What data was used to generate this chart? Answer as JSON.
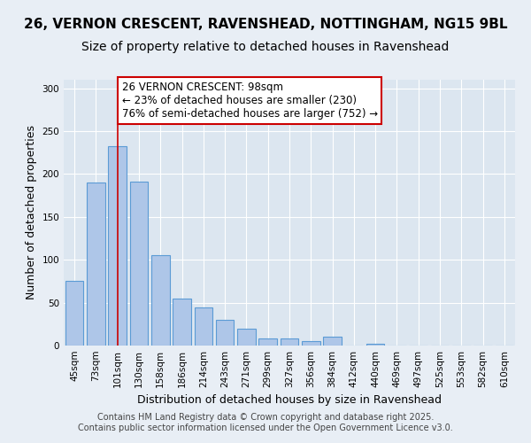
{
  "title": "26, VERNON CRESCENT, RAVENSHEAD, NOTTINGHAM, NG15 9BL",
  "subtitle": "Size of property relative to detached houses in Ravenshead",
  "xlabel": "Distribution of detached houses by size in Ravenshead",
  "ylabel": "Number of detached properties",
  "categories": [
    "45sqm",
    "73sqm",
    "101sqm",
    "130sqm",
    "158sqm",
    "186sqm",
    "214sqm",
    "243sqm",
    "271sqm",
    "299sqm",
    "327sqm",
    "356sqm",
    "384sqm",
    "412sqm",
    "440sqm",
    "469sqm",
    "497sqm",
    "525sqm",
    "553sqm",
    "582sqm",
    "610sqm"
  ],
  "values": [
    75,
    190,
    233,
    191,
    105,
    55,
    44,
    30,
    20,
    8,
    8,
    5,
    10,
    0,
    2,
    0,
    0,
    0,
    0,
    0,
    0
  ],
  "bar_color": "#aec6e8",
  "bar_edge_color": "#5b9bd5",
  "vline_x_index": 2,
  "vline_color": "#cc0000",
  "annotation_text": "26 VERNON CRESCENT: 98sqm\n← 23% of detached houses are smaller (230)\n76% of semi-detached houses are larger (752) →",
  "annotation_box_color": "#ffffff",
  "annotation_box_edge_color": "#cc0000",
  "ylim": [
    0,
    310
  ],
  "yticks": [
    0,
    50,
    100,
    150,
    200,
    250,
    300
  ],
  "background_color": "#e8eef5",
  "plot_bg_color": "#dce6f0",
  "grid_color": "#ffffff",
  "footer_text": "Contains HM Land Registry data © Crown copyright and database right 2025.\nContains public sector information licensed under the Open Government Licence v3.0.",
  "title_fontsize": 11,
  "subtitle_fontsize": 10,
  "axis_label_fontsize": 9,
  "tick_fontsize": 7.5,
  "annotation_fontsize": 8.5,
  "footer_fontsize": 7
}
